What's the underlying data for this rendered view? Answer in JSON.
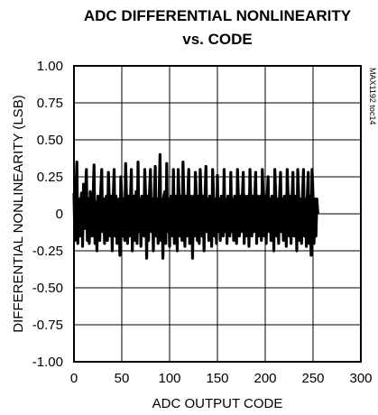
{
  "chart_data": {
    "type": "line",
    "title": "ADC DIFFERENTIAL NONLINEARITY",
    "subtitle": "vs. CODE",
    "xlabel": "ADC OUTPUT CODE",
    "ylabel": "DIFFERENTIAL NONLINEARITY (LSB)",
    "xlim": [
      0,
      300
    ],
    "ylim": [
      -1.0,
      1.0
    ],
    "x_ticks": [
      "0",
      "50",
      "100",
      "150",
      "200",
      "250",
      "300"
    ],
    "x_tick_values": [
      0,
      50,
      100,
      150,
      200,
      250,
      300
    ],
    "y_ticks": [
      "1.00",
      "0.75",
      "0.50",
      "0.25",
      "0",
      "-0.25",
      "-0.50",
      "-0.75",
      "-1.00"
    ],
    "y_tick_values": [
      1.0,
      0.75,
      0.5,
      0.25,
      0,
      -0.25,
      -0.5,
      -0.75,
      -1.0
    ],
    "grid": true,
    "code_range": [
      0,
      255
    ],
    "series": [
      {
        "values": [
          0.14,
          -0.18,
          0.12,
          0.35,
          -0.2,
          0.1,
          -0.15,
          0.08,
          0.14,
          -0.22,
          0.2,
          -0.1,
          0.12,
          0.3,
          -0.18,
          0.1,
          -0.2,
          0.15,
          0.12,
          -0.15,
          0.1,
          0.33,
          -0.2,
          0.08,
          -0.25,
          0.12,
          0.1,
          -0.18,
          0.15,
          0.3,
          -0.12,
          0.1,
          -0.2,
          0.1,
          0.12,
          -0.18,
          0.28,
          0.08,
          -0.15,
          0.12,
          -0.25,
          0.1,
          0.3,
          -0.15,
          0.12,
          -0.2,
          0.08,
          0.1,
          -0.28,
          0.25,
          0.12,
          -0.15,
          0.1,
          -0.18,
          0.34,
          0.1,
          -0.2,
          0.12,
          -0.15,
          0.08,
          0.3,
          -0.25,
          0.1,
          0.12,
          -0.18,
          0.15,
          -0.2,
          0.35,
          -0.12,
          0.1,
          -0.22,
          0.12,
          0.08,
          -0.15,
          0.3,
          0.1,
          -0.3,
          0.12,
          -0.18,
          0.15,
          0.3,
          -0.12,
          0.1,
          -0.25,
          0.12,
          0.32,
          -0.15,
          0.1,
          -0.2,
          0.12,
          0.4,
          -0.18,
          0.1,
          -0.3,
          0.12,
          0.15,
          -0.2,
          0.34,
          -0.12,
          0.1,
          -0.22,
          0.12,
          0.1,
          -0.15,
          0.3,
          -0.2,
          0.1,
          0.12,
          -0.25,
          0.3,
          0.1,
          -0.15,
          0.12,
          -0.18,
          0.35,
          0.1,
          -0.22,
          0.12,
          -0.15,
          0.1,
          0.3,
          -0.2,
          0.12,
          0.1,
          -0.3,
          0.12,
          -0.15,
          0.28,
          0.1,
          -0.18,
          0.12,
          -0.2,
          0.3,
          0.1,
          -0.15,
          0.12,
          -0.25,
          0.1,
          0.32,
          -0.12,
          0.1,
          -0.18,
          0.12,
          0.1,
          -0.22,
          0.3,
          0.12,
          -0.15,
          0.1,
          -0.2,
          0.26,
          -0.12,
          0.1,
          -0.18,
          0.12,
          0.1,
          -0.15,
          0.3,
          -0.12,
          0.1,
          -0.2,
          0.12,
          0.1,
          -0.15,
          0.28,
          -0.12,
          0.1,
          -0.18,
          0.12,
          0.1,
          -0.2,
          0.3,
          0.1,
          -0.15,
          0.12,
          -0.12,
          0.1,
          0.28,
          -0.2,
          0.12,
          -0.15,
          0.1,
          0.12,
          -0.22,
          0.3,
          0.1,
          -0.15,
          0.12,
          -0.12,
          0.1,
          0.28,
          -0.2,
          0.12,
          -0.15,
          0.1,
          0.12,
          -0.18,
          0.3,
          0.1,
          -0.15,
          0.12,
          -0.2,
          0.1,
          0.25,
          -0.12,
          0.1,
          -0.18,
          0.12,
          0.1,
          -0.25,
          0.3,
          0.12,
          -0.15,
          0.1,
          -0.2,
          0.12,
          0.28,
          -0.12,
          0.1,
          -0.18,
          0.12,
          0.1,
          -0.22,
          0.3,
          0.1,
          -0.15,
          0.12,
          -0.2,
          0.1,
          0.28,
          -0.15,
          0.12,
          0.1,
          -0.25,
          0.3,
          0.12,
          -0.18,
          0.1,
          -0.2,
          0.12,
          0.3,
          -0.15,
          0.1,
          -0.22,
          0.12,
          0.28,
          -0.2,
          0.12,
          -0.28,
          0.3,
          0.12,
          -0.2,
          0.1,
          -0.15,
          0.1,
          0.0
        ]
      }
    ]
  },
  "side_note": "MAX1192 toc14"
}
